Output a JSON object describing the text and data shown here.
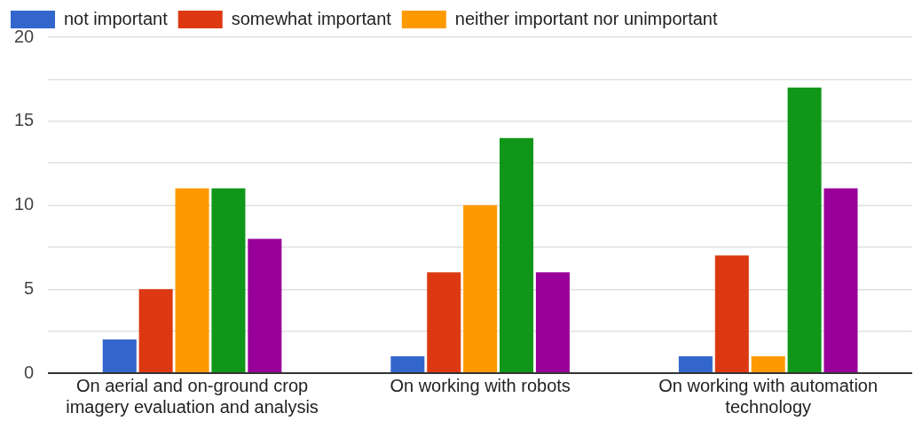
{
  "chart_data": {
    "type": "bar",
    "categories": [
      "On aerial and on-ground crop imagery evaluation and analysis",
      "On working with robots",
      "On working with automation technology"
    ],
    "series": [
      {
        "name": "not important",
        "color": "#3366cc",
        "values": [
          2,
          1,
          1
        ]
      },
      {
        "name": "somewhat important",
        "color": "#dc3912",
        "values": [
          5,
          6,
          7
        ]
      },
      {
        "name": "neither important nor unimportant",
        "color": "#ff9900",
        "values": [
          11,
          10,
          1
        ]
      },
      {
        "color": "#109618",
        "values": [
          11,
          14,
          17
        ]
      },
      {
        "color": "#990099",
        "values": [
          8,
          6,
          11
        ]
      }
    ],
    "ylim": [
      0,
      20
    ],
    "yticks": [
      0,
      {
        "value": 2.5,
        "label": null
      },
      5,
      {
        "value": 7.5,
        "label": null
      },
      10,
      {
        "value": 12.5,
        "label": null
      },
      15,
      {
        "value": 17.5,
        "label": null
      },
      20
    ],
    "grid": "y",
    "legend": "top left"
  }
}
